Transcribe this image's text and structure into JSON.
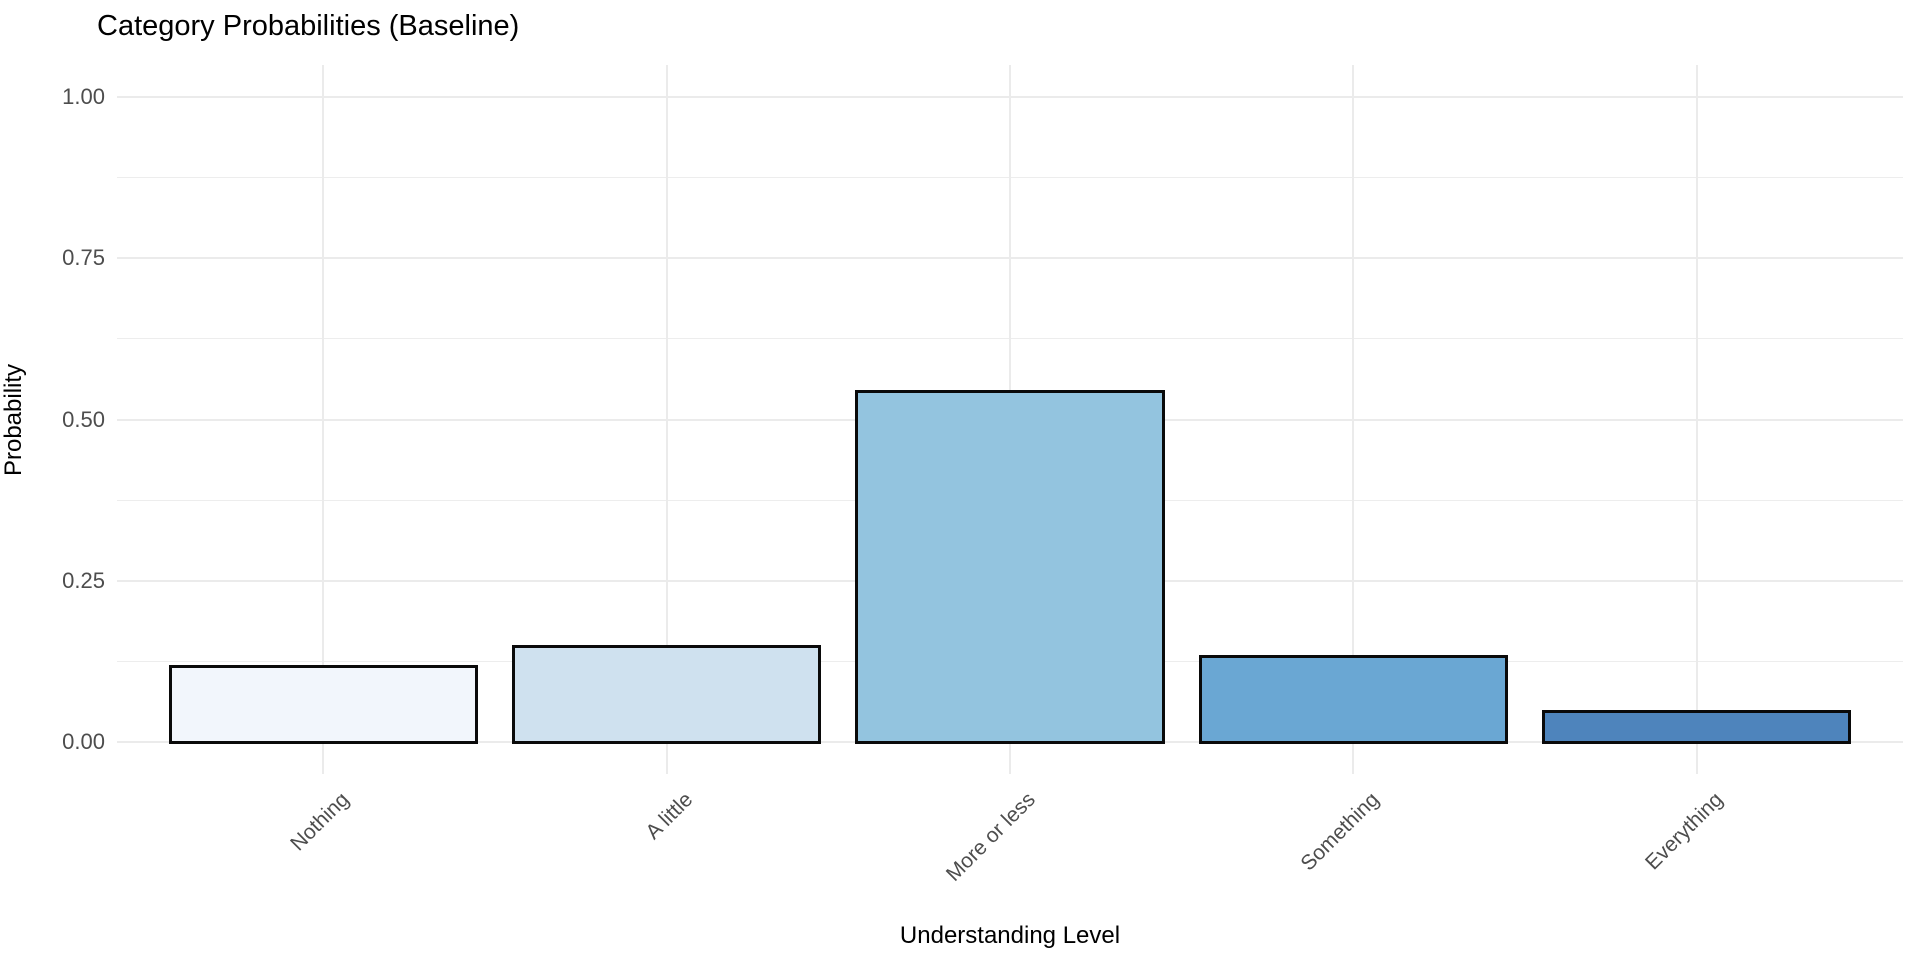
{
  "chart_data": {
    "type": "bar",
    "title": "Category Probabilities (Baseline)",
    "xlabel": "Understanding Level",
    "ylabel": "Probability",
    "categories": [
      "Nothing",
      "A little",
      "More or less",
      "Something",
      "Everything"
    ],
    "values": [
      0.12,
      0.15,
      0.545,
      0.135,
      0.05
    ],
    "ylim": [
      0,
      1
    ],
    "yticks": [
      0,
      0.25,
      0.5,
      0.75,
      1
    ],
    "ytick_labels": [
      "0.00",
      "0.25",
      "0.50",
      "0.75",
      "1.00"
    ],
    "minor_yticks": [
      0.125,
      0.375,
      0.625,
      0.875
    ],
    "grid": "major and minor horizontal, major vertical at category centers",
    "legend_position": "none",
    "x_label_rotation_deg": 45,
    "bar_fill_colors": [
      "#F2F6FC",
      "#CFE1EF",
      "#93C4DF",
      "#6AA7D3",
      "#4E84BC"
    ],
    "bar_border_color": "#0a0a0a",
    "colors": {
      "background": "#FFFFFF",
      "grid_major": "#EBEBEB",
      "grid_minor": "#EDEDED",
      "tick_label_text": "#4D4D4D",
      "title_text": "#000000",
      "axis_title_text": "#000000"
    }
  }
}
